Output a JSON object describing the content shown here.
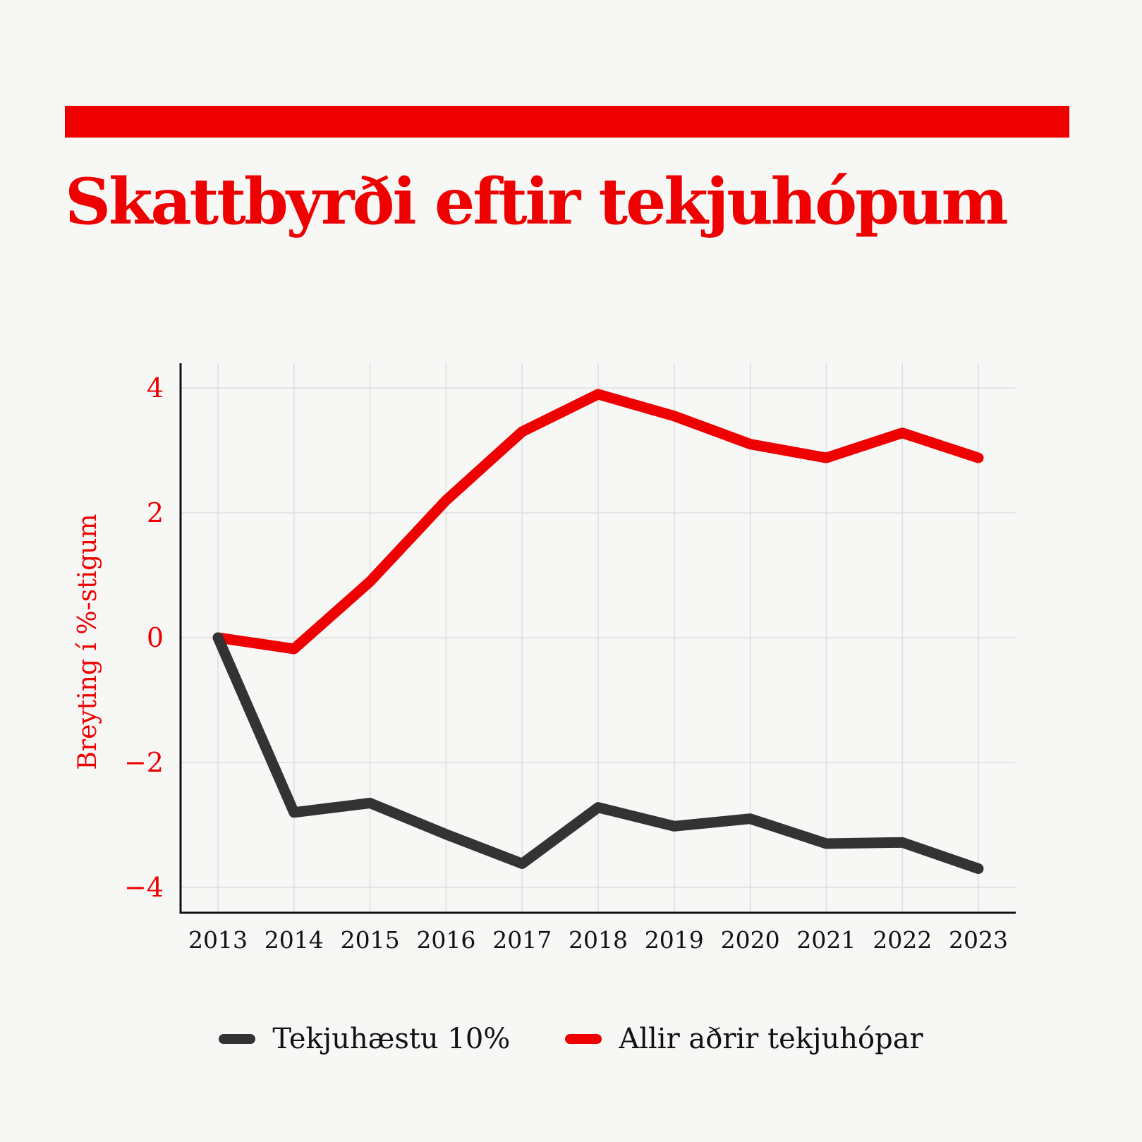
{
  "title": "Skattbyrði eftir tekjuhópum",
  "colors": {
    "accent": "#ee0000",
    "dark": "#333333",
    "text": "#111111",
    "grid": "#dddddd",
    "background": "#f7f7f6"
  },
  "chart_data": {
    "type": "line",
    "title": "Skattbyrði eftir tekjuhópum",
    "xlabel": "",
    "ylabel": "Breyting í %-stigum",
    "x": [
      2013,
      2014,
      2015,
      2016,
      2017,
      2018,
      2019,
      2020,
      2021,
      2022,
      2023
    ],
    "xticks": [
      "2013",
      "2014",
      "2015",
      "2016",
      "2017",
      "2018",
      "2019",
      "2020",
      "2021",
      "2022",
      "2023"
    ],
    "yticks": [
      4,
      2,
      0,
      -2,
      -4
    ],
    "ytick_labels": [
      "4",
      "2",
      "0",
      "−2",
      "−4"
    ],
    "ylim": [
      -4.4,
      4.4
    ],
    "grid": true,
    "legend_position": "bottom",
    "series": [
      {
        "name": "Tekjuhæstu 10%",
        "color": "#333333",
        "values": [
          0,
          -2.8,
          -2.65,
          -3.15,
          -3.62,
          -2.72,
          -3.02,
          -2.9,
          -3.3,
          -3.28,
          -3.7
        ]
      },
      {
        "name": "Allir aðrir tekjuhópar",
        "color": "#ee0000",
        "values": [
          0,
          -0.18,
          0.9,
          2.2,
          3.3,
          3.9,
          3.55,
          3.1,
          2.88,
          3.28,
          2.88
        ]
      }
    ]
  }
}
